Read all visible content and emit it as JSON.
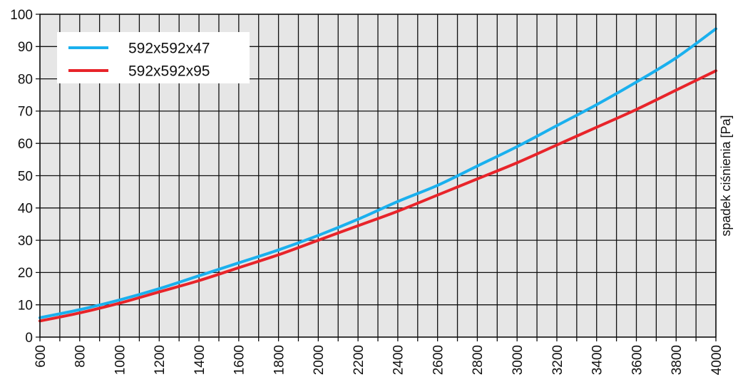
{
  "chart_data": {
    "type": "line",
    "title": "",
    "xlabel": "",
    "ylabel": "spadek ciśnienia [Pa]",
    "xlim": [
      600,
      4000
    ],
    "ylim": [
      0,
      100
    ],
    "x_ticks": [
      600,
      800,
      1000,
      1200,
      1400,
      1600,
      1800,
      2000,
      2200,
      2400,
      2600,
      2800,
      3000,
      3200,
      3400,
      3600,
      3800,
      4000
    ],
    "y_ticks": [
      0,
      10,
      20,
      30,
      40,
      50,
      60,
      70,
      80,
      90,
      100
    ],
    "x_minor_step": 100,
    "grid": true,
    "background_color": "#e6e6e6",
    "legend_position": "top-left",
    "series": [
      {
        "name": "592x592x47",
        "color": "#1ab0ee",
        "x": [
          600,
          800,
          1000,
          1200,
          1400,
          1600,
          1800,
          2000,
          2200,
          2400,
          2600,
          2800,
          3000,
          3200,
          3400,
          3600,
          3800,
          4000
        ],
        "y": [
          6,
          8.5,
          11.5,
          15,
          19,
          23,
          27,
          31.5,
          36.5,
          42,
          47,
          53,
          59,
          65.5,
          72,
          79,
          86.5,
          95.5
        ]
      },
      {
        "name": "592x592x95",
        "color": "#e8242a",
        "x": [
          600,
          800,
          1000,
          1200,
          1400,
          1600,
          1800,
          2000,
          2200,
          2400,
          2600,
          2800,
          3000,
          3200,
          3400,
          3600,
          3800,
          4000
        ],
        "y": [
          5,
          7.5,
          10.5,
          14,
          17.5,
          21.5,
          25.5,
          30,
          34.5,
          39,
          44,
          49,
          54,
          59.5,
          65,
          70.5,
          76.5,
          82.5
        ]
      }
    ]
  }
}
